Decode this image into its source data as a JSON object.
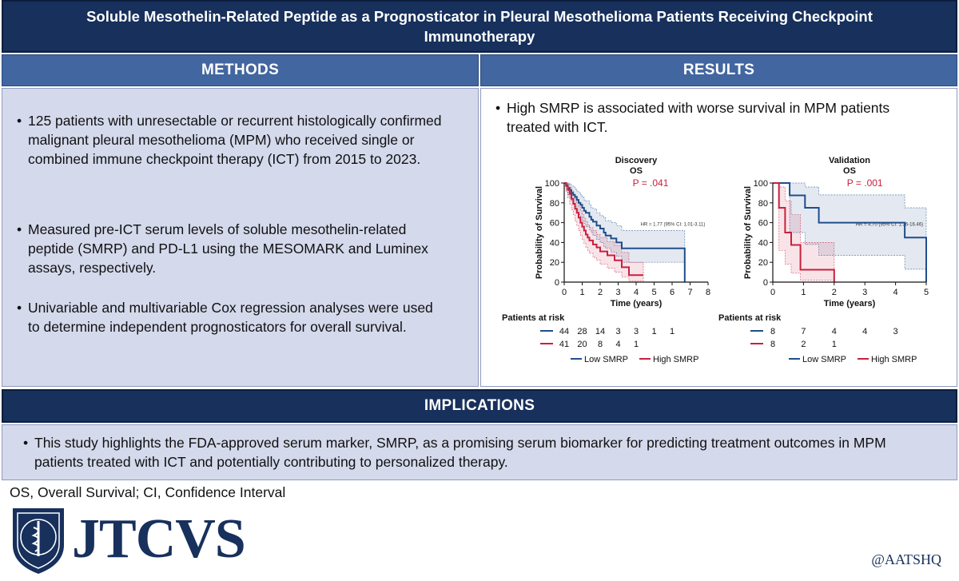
{
  "title": "Soluble Mesothelin-Related Peptide as a Prognosticator in Pleural Mesothelioma Patients Receiving Checkpoint Immunotherapy",
  "methods": {
    "header": "METHODS",
    "bullets": [
      "125 patients with unresectable or recurrent histologically confirmed malignant pleural mesothelioma (MPM) who received single or combined immune checkpoint therapy (ICT) from 2015 to 2023.",
      "Measured pre-ICT serum levels of soluble mesothelin-related peptide (SMRP) and PD-L1 using the MESOMARK and Luminex assays, respectively.",
      "Univariable and multivariable Cox regression analyses were used to determine independent prognosticators for overall survival."
    ]
  },
  "results": {
    "header": "RESULTS",
    "bullet": "High SMRP is associated with worse survival in MPM patients treated with ICT."
  },
  "implications": {
    "header": "IMPLICATIONS",
    "bullet": "This study highlights the FDA-approved serum marker, SMRP, as a promising serum biomarker for predicting treatment outcomes in MPM patients treated with ICT and potentially contributing to personalized therapy."
  },
  "footnote": "OS, Overall Survival; CI, Confidence Interval",
  "logo": "JTCVS",
  "handle": "@AATSHQ",
  "colors": {
    "navy": "#17305c",
    "header_blue": "#4266a0",
    "panel": "#d4d9ec",
    "low": "#1f4e8c",
    "high": "#c8203e"
  },
  "chart_data": [
    {
      "type": "line",
      "title": "Discovery",
      "subtitle": "OS",
      "pvalue": "P = .041",
      "hr": "HR = 1.77 (95% CI: 1.01-3.11)",
      "xlabel": "Time (years)",
      "ylabel": "Probability of Survival",
      "xlim": [
        0,
        8
      ],
      "ylim": [
        0,
        100
      ],
      "xticks": [
        0,
        1,
        2,
        3,
        4,
        5,
        6,
        7,
        8
      ],
      "yticks": [
        0,
        20,
        40,
        60,
        80,
        100
      ],
      "series": [
        {
          "name": "Low SMRP",
          "color": "#1f4e8c",
          "x": [
            0,
            0.1,
            0.2,
            0.3,
            0.4,
            0.5,
            0.6,
            0.7,
            0.8,
            0.9,
            1.0,
            1.1,
            1.2,
            1.4,
            1.5,
            1.6,
            1.8,
            2.0,
            2.2,
            2.3,
            2.6,
            2.9,
            3.2,
            6.7
          ],
          "y": [
            100,
            98,
            95,
            93,
            90,
            88,
            86,
            83,
            80,
            78,
            75,
            72,
            70,
            66,
            63,
            61,
            57,
            54,
            50,
            47,
            44,
            40,
            34,
            0
          ],
          "ci_upper": [
            100,
            100,
            100,
            99,
            97,
            96,
            94,
            92,
            90,
            88,
            86,
            83,
            82,
            78,
            75,
            74,
            70,
            67,
            65,
            62,
            60,
            57,
            52,
            52
          ],
          "ci_lower": [
            100,
            93,
            88,
            85,
            82,
            79,
            76,
            72,
            68,
            66,
            62,
            59,
            56,
            53,
            50,
            47,
            43,
            40,
            36,
            34,
            30,
            26,
            20,
            0
          ]
        },
        {
          "name": "High SMRP",
          "color": "#c8203e",
          "x": [
            0,
            0.1,
            0.2,
            0.3,
            0.4,
            0.5,
            0.6,
            0.7,
            0.8,
            0.9,
            1.0,
            1.1,
            1.2,
            1.3,
            1.4,
            1.6,
            1.8,
            2.0,
            2.4,
            2.8,
            3.2,
            3.6,
            4.4
          ],
          "y": [
            100,
            97,
            93,
            89,
            84,
            79,
            74,
            70,
            65,
            60,
            56,
            52,
            48,
            45,
            42,
            38,
            35,
            31,
            27,
            22,
            15,
            7,
            7
          ],
          "ci_upper": [
            100,
            100,
            99,
            96,
            92,
            88,
            84,
            80,
            76,
            72,
            68,
            64,
            61,
            58,
            55,
            52,
            48,
            45,
            41,
            37,
            30,
            20,
            20
          ],
          "ci_lower": [
            100,
            91,
            85,
            79,
            73,
            68,
            62,
            57,
            52,
            47,
            43,
            39,
            35,
            32,
            29,
            25,
            22,
            18,
            14,
            10,
            5,
            1,
            1
          ]
        }
      ],
      "risk_label": "Patients at risk",
      "risk_rows": [
        {
          "color": "#1f4e8c",
          "values": [
            "44",
            "28",
            "14",
            "3",
            "3",
            "1",
            "1"
          ]
        },
        {
          "color": "#c8203e",
          "values": [
            "41",
            "20",
            "8",
            "4",
            "1"
          ]
        }
      ],
      "legend": [
        "Low SMRP",
        "High SMRP"
      ]
    },
    {
      "type": "line",
      "title": "Validation",
      "subtitle": "OS",
      "pvalue": "P = .001",
      "hr": "HR = 4.70 (95% CI: 1.36-16.46)",
      "xlabel": "Time (years)",
      "ylabel": "Probability of Survival",
      "xlim": [
        0,
        5
      ],
      "ylim": [
        0,
        100
      ],
      "xticks": [
        0,
        1,
        2,
        3,
        4,
        5
      ],
      "yticks": [
        0,
        20,
        40,
        60,
        80,
        100
      ],
      "series": [
        {
          "name": "Low SMRP",
          "color": "#1f4e8c",
          "x": [
            0,
            0.55,
            1.05,
            1.5,
            4.3,
            5.0
          ],
          "y": [
            100,
            87.5,
            75,
            60,
            45,
            0
          ],
          "ci_upper": [
            100,
            100,
            96,
            88,
            75,
            75
          ],
          "ci_lower": [
            100,
            50,
            38,
            27,
            13,
            0
          ]
        },
        {
          "name": "High SMRP",
          "color": "#c8203e",
          "x": [
            0,
            0.2,
            0.4,
            0.6,
            0.9,
            2.0
          ],
          "y": [
            100,
            75,
            50,
            37.5,
            12.5,
            0
          ],
          "ci_upper": [
            100,
            96,
            82,
            68,
            40,
            40
          ],
          "ci_lower": [
            100,
            32,
            18,
            9,
            2,
            0
          ]
        }
      ],
      "risk_label": "Patients at risk",
      "risk_rows": [
        {
          "color": "#1f4e8c",
          "values": [
            "8",
            "7",
            "4",
            "4",
            "3"
          ]
        },
        {
          "color": "#c8203e",
          "values": [
            "8",
            "2",
            "1"
          ]
        }
      ],
      "legend": [
        "Low SMRP",
        "High SMRP"
      ]
    }
  ]
}
